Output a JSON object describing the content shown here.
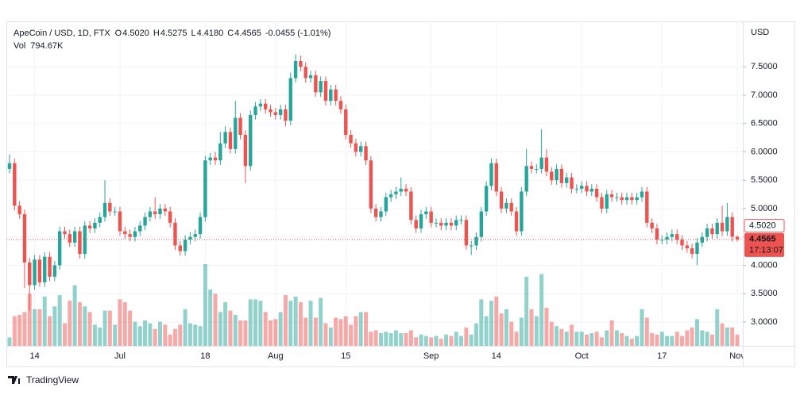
{
  "chart_data": {
    "type": "candlestick",
    "legend": {
      "symbol": "ApeCoin / USD, 1D, FTX",
      "fields": [
        {
          "key": "O",
          "value": "4.5020"
        },
        {
          "key": "H",
          "value": "4.5275"
        },
        {
          "key": "L",
          "value": "4.4180"
        },
        {
          "key": "C",
          "value": "4.4565"
        }
      ],
      "change": "-0.0455 (-1.01%)",
      "volume_key": "Vol",
      "volume_value": "794.67K"
    },
    "y_unit": "USD",
    "price_tags": {
      "open": "4.5020",
      "last": "4.4565",
      "countdown": "17:13:07"
    },
    "brand": "TradingView",
    "up_color": "#26a69a",
    "down_color": "#ef5350",
    "grid": true,
    "categories": [
      null,
      null,
      null,
      null,
      null,
      "14",
      null,
      null,
      null,
      null,
      null,
      null,
      null,
      null,
      null,
      null,
      null,
      null,
      null,
      null,
      null,
      null,
      "Jul",
      null,
      null,
      null,
      null,
      null,
      null,
      null,
      null,
      null,
      null,
      null,
      null,
      null,
      null,
      null,
      null,
      "18",
      null,
      null,
      null,
      null,
      null,
      null,
      null,
      null,
      null,
      null,
      null,
      null,
      null,
      "Aug",
      null,
      null,
      null,
      null,
      null,
      null,
      null,
      null,
      null,
      null,
      null,
      null,
      null,
      "15",
      null,
      null,
      null,
      null,
      null,
      null,
      null,
      null,
      null,
      null,
      null,
      null,
      null,
      null,
      null,
      null,
      "Sep",
      null,
      null,
      null,
      null,
      null,
      null,
      null,
      null,
      null,
      null,
      null,
      null,
      "14",
      null,
      null,
      null,
      null,
      null,
      null,
      null,
      null,
      null,
      null,
      null,
      null,
      null,
      null,
      null,
      null,
      "Oct",
      null,
      null,
      null,
      null,
      null,
      null,
      null,
      null,
      null,
      null,
      null,
      null,
      null,
      null,
      null,
      "17",
      null,
      null,
      null,
      null,
      null,
      null,
      null,
      null,
      null,
      null,
      null,
      null,
      null,
      null,
      "Nov"
    ],
    "open": [
      5.7,
      5.8,
      5.05,
      4.9,
      4.05,
      3.65,
      4.1,
      3.7,
      4.15,
      3.8,
      4.0,
      4.6,
      4.55,
      4.4,
      4.6,
      4.2,
      4.7,
      4.65,
      4.75,
      4.85,
      5.1,
      4.95,
      4.95,
      4.6,
      4.55,
      4.5,
      4.6,
      4.7,
      4.85,
      4.95,
      4.9,
      5.0,
      4.95,
      4.75,
      4.35,
      4.25,
      4.45,
      4.5,
      4.55,
      4.85,
      5.85,
      5.9,
      5.85,
      6.15,
      6.35,
      6.05,
      6.6,
      6.3,
      5.75,
      6.65,
      6.8,
      6.85,
      6.75,
      6.7,
      6.65,
      6.75,
      6.55,
      7.3,
      7.6,
      7.5,
      7.3,
      7.35,
      7.05,
      7.25,
      6.9,
      7.1,
      6.9,
      6.75,
      6.3,
      6.15,
      6.0,
      6.1,
      5.85,
      5.0,
      4.85,
      4.95,
      5.2,
      5.25,
      5.3,
      5.35,
      5.3,
      4.8,
      4.65,
      4.9,
      4.95,
      4.75,
      4.75,
      4.7,
      4.75,
      4.7,
      4.8,
      4.8,
      4.35,
      4.35,
      4.5,
      4.95,
      5.4,
      5.8,
      5.3,
      5.0,
      5.1,
      4.95,
      4.6,
      5.3,
      5.75,
      5.7,
      5.7,
      5.9,
      5.65,
      5.5,
      5.7,
      5.45,
      5.55,
      5.35,
      5.35,
      5.4,
      5.3,
      5.35,
      5.2,
      5.0,
      5.25,
      5.2,
      5.2,
      5.15,
      5.2,
      5.15,
      5.2,
      5.3,
      4.75,
      4.65,
      4.45,
      4.45,
      4.5,
      4.55,
      4.45,
      4.35,
      4.3,
      4.2,
      4.4,
      4.5,
      4.65,
      4.55,
      4.75,
      4.6,
      4.85,
      4.502
    ],
    "high": [
      5.95,
      5.88,
      5.13,
      4.98,
      4.13,
      4.18,
      4.18,
      4.23,
      4.23,
      4.08,
      4.68,
      4.68,
      4.63,
      4.68,
      4.68,
      4.78,
      4.78,
      4.83,
      4.93,
      5.5,
      5.18,
      5.03,
      5.03,
      4.68,
      4.63,
      4.68,
      4.78,
      4.93,
      5.03,
      5.2,
      5.08,
      5.08,
      5.03,
      4.83,
      4.43,
      4.53,
      4.58,
      4.63,
      4.93,
      5.93,
      5.98,
      6.0,
      6.35,
      6.45,
      6.43,
      6.9,
      6.68,
      6.38,
      6.73,
      6.88,
      6.93,
      6.93,
      6.83,
      6.78,
      6.83,
      6.83,
      7.4,
      7.72,
      7.7,
      7.58,
      7.43,
      7.43,
      7.33,
      7.33,
      7.18,
      7.18,
      6.98,
      6.83,
      6.38,
      6.23,
      6.18,
      6.18,
      5.93,
      5.08,
      5.03,
      5.28,
      5.33,
      5.38,
      5.55,
      5.43,
      5.38,
      4.88,
      4.98,
      5.03,
      5.03,
      4.83,
      4.83,
      4.83,
      4.83,
      4.88,
      4.88,
      4.88,
      4.43,
      4.58,
      5.03,
      5.48,
      5.88,
      5.88,
      5.38,
      5.18,
      5.18,
      5.03,
      5.38,
      6.05,
      5.83,
      5.78,
      6.4,
      6.05,
      5.73,
      5.78,
      5.78,
      5.63,
      5.63,
      5.43,
      5.48,
      5.48,
      5.43,
      5.43,
      5.28,
      5.33,
      5.33,
      5.28,
      5.28,
      5.28,
      5.28,
      5.28,
      5.38,
      5.38,
      4.83,
      4.73,
      4.53,
      4.58,
      4.63,
      4.63,
      4.53,
      4.43,
      4.38,
      4.48,
      4.58,
      4.73,
      4.73,
      4.83,
      5.05,
      5.1,
      4.93,
      4.5275
    ],
    "low": [
      5.62,
      4.97,
      4.82,
      3.6,
      3.2,
      3.57,
      3.62,
      3.62,
      3.72,
      3.72,
      3.92,
      4.47,
      4.32,
      4.32,
      4.12,
      4.12,
      4.57,
      4.57,
      4.67,
      4.77,
      4.87,
      4.87,
      4.52,
      4.47,
      4.42,
      4.42,
      4.52,
      4.62,
      4.77,
      4.82,
      4.82,
      4.87,
      4.67,
      4.27,
      4.17,
      4.17,
      4.37,
      4.42,
      4.47,
      4.77,
      5.77,
      5.77,
      5.77,
      6.07,
      5.97,
      5.97,
      6.22,
      5.45,
      5.67,
      6.57,
      6.72,
      6.67,
      6.62,
      6.57,
      6.57,
      6.45,
      6.47,
      7.22,
      7.42,
      7.22,
      7.22,
      6.97,
      6.97,
      6.82,
      6.82,
      6.82,
      6.67,
      6.22,
      6.07,
      5.92,
      5.92,
      5.77,
      4.92,
      4.77,
      4.77,
      4.87,
      5.12,
      5.17,
      5.22,
      5.22,
      4.72,
      4.57,
      4.57,
      4.82,
      4.67,
      4.67,
      4.62,
      4.62,
      4.62,
      4.62,
      4.72,
      4.27,
      4.18,
      4.27,
      4.42,
      4.87,
      5.32,
      5.22,
      4.92,
      4.92,
      4.87,
      4.52,
      4.52,
      5.22,
      5.62,
      5.62,
      5.62,
      5.57,
      5.42,
      5.42,
      5.37,
      5.37,
      5.27,
      5.27,
      5.27,
      5.22,
      5.22,
      5.12,
      4.92,
      4.92,
      5.12,
      5.12,
      5.07,
      5.07,
      5.07,
      5.07,
      5.12,
      4.67,
      4.57,
      4.37,
      4.37,
      4.37,
      4.42,
      4.37,
      4.27,
      4.22,
      4.12,
      4.0,
      4.32,
      4.42,
      4.47,
      4.47,
      4.52,
      4.52,
      4.42,
      4.418
    ],
    "close": [
      5.8,
      5.05,
      4.9,
      4.05,
      3.65,
      4.1,
      3.7,
      4.15,
      3.8,
      4.0,
      4.6,
      4.55,
      4.4,
      4.6,
      4.2,
      4.7,
      4.65,
      4.75,
      4.85,
      5.1,
      4.95,
      4.95,
      4.6,
      4.55,
      4.5,
      4.6,
      4.7,
      4.85,
      4.95,
      4.9,
      5.0,
      4.95,
      4.75,
      4.35,
      4.25,
      4.45,
      4.5,
      4.55,
      4.85,
      5.85,
      5.9,
      5.85,
      6.15,
      6.35,
      6.05,
      6.6,
      6.3,
      5.75,
      6.65,
      6.8,
      6.85,
      6.75,
      6.7,
      6.65,
      6.75,
      6.55,
      7.3,
      7.6,
      7.5,
      7.3,
      7.35,
      7.05,
      7.25,
      6.9,
      7.1,
      6.9,
      6.75,
      6.3,
      6.15,
      6.0,
      6.1,
      5.85,
      5.0,
      4.85,
      4.95,
      5.2,
      5.25,
      5.3,
      5.35,
      5.3,
      4.8,
      4.65,
      4.9,
      4.95,
      4.75,
      4.75,
      4.7,
      4.75,
      4.7,
      4.8,
      4.8,
      4.35,
      4.35,
      4.5,
      4.95,
      5.4,
      5.8,
      5.3,
      5.0,
      5.1,
      4.95,
      4.6,
      5.3,
      5.75,
      5.7,
      5.7,
      5.9,
      5.65,
      5.5,
      5.7,
      5.45,
      5.55,
      5.35,
      5.35,
      5.4,
      5.3,
      5.35,
      5.2,
      5.0,
      5.25,
      5.2,
      5.2,
      5.15,
      5.2,
      5.15,
      5.2,
      5.3,
      4.75,
      4.65,
      4.45,
      4.45,
      4.5,
      4.55,
      4.45,
      4.35,
      4.3,
      4.2,
      4.4,
      4.5,
      4.65,
      4.55,
      4.75,
      4.6,
      4.85,
      4.502,
      4.4565
    ],
    "volume": [
      600,
      2100,
      2200,
      2400,
      3700,
      2600,
      2600,
      3500,
      2100,
      2800,
      3600,
      1600,
      3200,
      4300,
      3100,
      2800,
      2400,
      1500,
      1300,
      2500,
      2500,
      1500,
      3300,
      3100,
      2500,
      1700,
      1400,
      1800,
      1600,
      1200,
      1700,
      1500,
      800,
      1200,
      1500,
      2600,
      1600,
      1500,
      1400,
      5800,
      4000,
      3700,
      2400,
      3100,
      2500,
      2200,
      1800,
      1800,
      3300,
      3300,
      3200,
      2400,
      1800,
      1900,
      2400,
      3600,
      3200,
      3500,
      3100,
      2000,
      3200,
      2000,
      3400,
      1600,
      1300,
      2000,
      1900,
      2100,
      1500,
      2100,
      2400,
      2400,
      1000,
      1100,
      900,
      1000,
      900,
      1100,
      900,
      900,
      1100,
      600,
      800,
      700,
      600,
      700,
      500,
      800,
      700,
      1000,
      700,
      1300,
      800,
      1600,
      3300,
      2100,
      3200,
      3500,
      2300,
      2600,
      1700,
      1000,
      2000,
      4900,
      2600,
      2100,
      5100,
      2700,
      1700,
      1400,
      1200,
      1000,
      1500,
      1000,
      1000,
      800,
      900,
      1000,
      600,
      1100,
      1800,
      1100,
      900,
      700,
      500,
      700,
      2600,
      2000,
      900,
      800,
      1000,
      700,
      700,
      1000,
      700,
      1100,
      1300,
      1900,
      1100,
      1000,
      800,
      2600,
      1600,
      1300,
      1300,
      794.67
    ],
    "ylim": [
      2.58,
      8.3
    ],
    "yticks": [
      {
        "value": 3,
        "label": "3.0000"
      },
      {
        "value": 3.5,
        "label": "3.5000"
      },
      {
        "value": 4,
        "label": "4.0000"
      },
      {
        "value": 4.5,
        "label": "4.5000"
      },
      {
        "value": 5,
        "label": "5.0000"
      },
      {
        "value": 5.5,
        "label": "5.5000"
      },
      {
        "value": 6,
        "label": "6.0000"
      },
      {
        "value": 6.5,
        "label": "6.5000"
      },
      {
        "value": 7,
        "label": "7.0000"
      },
      {
        "value": 7.5,
        "label": "7.5000"
      }
    ]
  }
}
